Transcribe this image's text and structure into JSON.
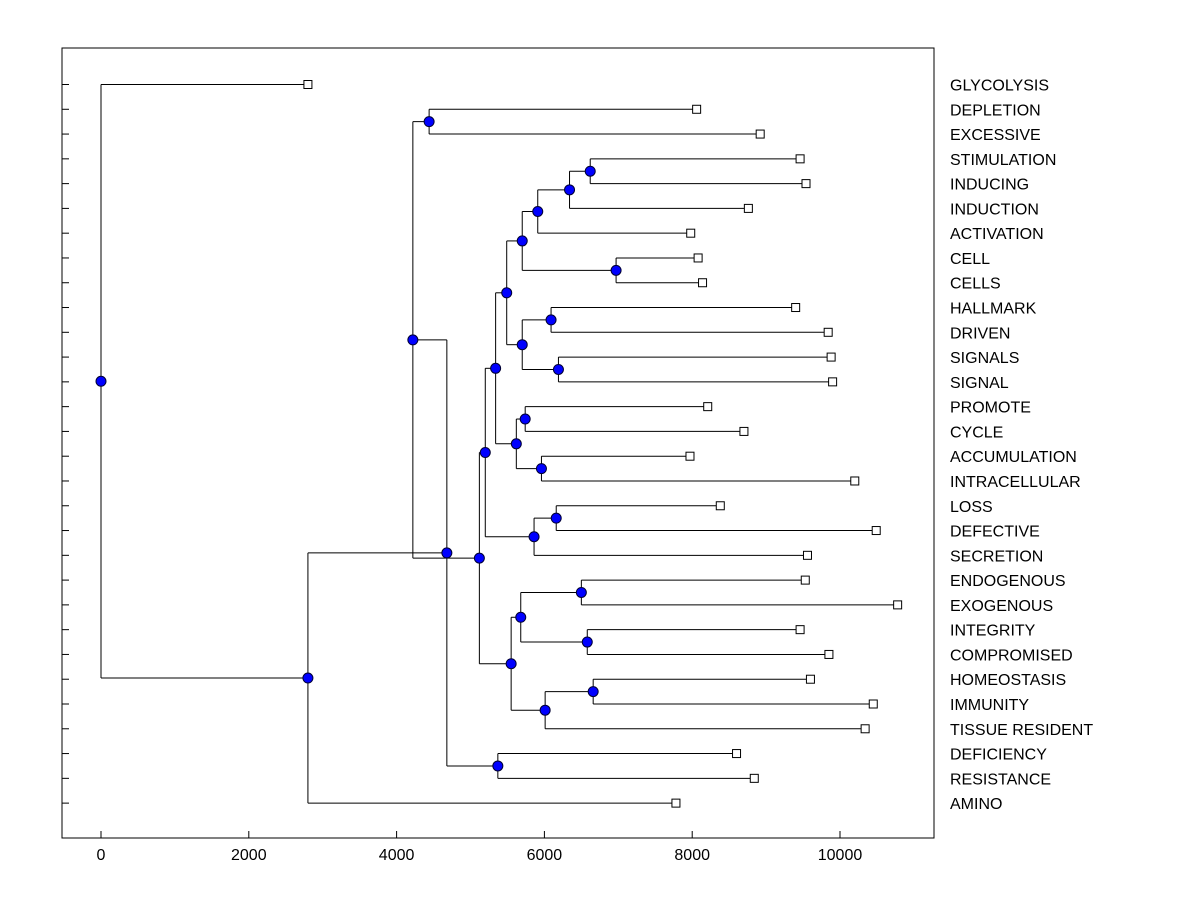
{
  "chart_data": {
    "type": "dendrogram",
    "title": "",
    "xlabel": "",
    "ylabel": "",
    "xlim": [
      -500,
      11400
    ],
    "x_ticks": [
      0,
      2000,
      4000,
      6000,
      8000,
      10000
    ],
    "grid": false,
    "leaves": [
      {
        "label": "GLYCOLYSIS",
        "x": 2800
      },
      {
        "label": "DEPLETION",
        "x": 8060
      },
      {
        "label": "EXCESSIVE",
        "x": 8920
      },
      {
        "label": "STIMULATION",
        "x": 9460
      },
      {
        "label": "INDUCING",
        "x": 9540
      },
      {
        "label": "INDUCTION",
        "x": 8760
      },
      {
        "label": "ACTIVATION",
        "x": 7980
      },
      {
        "label": "CELL",
        "x": 8080
      },
      {
        "label": "CELLS",
        "x": 8140
      },
      {
        "label": "HALLMARK",
        "x": 9400
      },
      {
        "label": "DRIVEN",
        "x": 9840
      },
      {
        "label": "SIGNALS",
        "x": 9880
      },
      {
        "label": "SIGNAL",
        "x": 9900
      },
      {
        "label": "PROMOTE",
        "x": 8210
      },
      {
        "label": "CYCLE",
        "x": 8700
      },
      {
        "label": "ACCUMULATION",
        "x": 7970
      },
      {
        "label": "INTRACELLULAR",
        "x": 10200
      },
      {
        "label": "LOSS",
        "x": 8380
      },
      {
        "label": "DEFECTIVE",
        "x": 10490
      },
      {
        "label": "SECRETION",
        "x": 9560
      },
      {
        "label": "ENDOGENOUS",
        "x": 9530
      },
      {
        "label": "EXOGENOUS",
        "x": 10780
      },
      {
        "label": "INTEGRITY",
        "x": 9460
      },
      {
        "label": "COMPROMISED",
        "x": 9850
      },
      {
        "label": "HOMEOSTASIS",
        "x": 9600
      },
      {
        "label": "IMMUNITY",
        "x": 10450
      },
      {
        "label": "TISSUE RESIDENT",
        "x": 10340
      },
      {
        "label": "DEFICIENCY",
        "x": 8600
      },
      {
        "label": "RESISTANCE",
        "x": 8840
      },
      {
        "label": "AMINO",
        "x": 7780
      }
    ],
    "merges": [
      {
        "id": "n1",
        "x": 4440,
        "children": [
          "L1",
          "L2"
        ]
      },
      {
        "id": "n2",
        "x": 6620,
        "children": [
          "L3",
          "L4"
        ]
      },
      {
        "id": "n3",
        "x": 6340,
        "children": [
          "n2",
          "L5"
        ]
      },
      {
        "id": "n4",
        "x": 5910,
        "children": [
          "n3",
          "L6"
        ]
      },
      {
        "id": "n5",
        "x": 6970,
        "children": [
          "L7",
          "L8"
        ]
      },
      {
        "id": "n6",
        "x": 5700,
        "children": [
          "n4",
          "n5"
        ]
      },
      {
        "id": "n7",
        "x": 6090,
        "children": [
          "L9",
          "L10"
        ]
      },
      {
        "id": "n8",
        "x": 6190,
        "children": [
          "L11",
          "L12"
        ]
      },
      {
        "id": "n9",
        "x": 5700,
        "children": [
          "n7",
          "n8"
        ]
      },
      {
        "id": "n10",
        "x": 5490,
        "children": [
          "n6",
          "n9"
        ]
      },
      {
        "id": "n11",
        "x": 5740,
        "children": [
          "L13",
          "L14"
        ]
      },
      {
        "id": "n12",
        "x": 5960,
        "children": [
          "L15",
          "L16"
        ]
      },
      {
        "id": "n13",
        "x": 5620,
        "children": [
          "n11",
          "n12"
        ]
      },
      {
        "id": "n14",
        "x": 5340,
        "children": [
          "n10",
          "n13"
        ]
      },
      {
        "id": "n15",
        "x": 6160,
        "children": [
          "L17",
          "L18"
        ]
      },
      {
        "id": "n16",
        "x": 5860,
        "children": [
          "n15",
          "L19"
        ]
      },
      {
        "id": "n17",
        "x": 5200,
        "children": [
          "n14",
          "n16"
        ]
      },
      {
        "id": "n18",
        "x": 6500,
        "children": [
          "L20",
          "L21"
        ]
      },
      {
        "id": "n19",
        "x": 6580,
        "children": [
          "L22",
          "L23"
        ]
      },
      {
        "id": "n20",
        "x": 5680,
        "children": [
          "n18",
          "n19"
        ]
      },
      {
        "id": "n21",
        "x": 6660,
        "children": [
          "L24",
          "L25"
        ]
      },
      {
        "id": "n22",
        "x": 6010,
        "children": [
          "n21",
          "L26"
        ]
      },
      {
        "id": "n23",
        "x": 5550,
        "children": [
          "n20",
          "n22"
        ]
      },
      {
        "id": "n24",
        "x": 5120,
        "children": [
          "n17",
          "n23"
        ]
      },
      {
        "id": "n25",
        "x": 4220,
        "children": [
          "n1",
          "n24"
        ]
      },
      {
        "id": "n26",
        "x": 5370,
        "children": [
          "L27",
          "L28"
        ]
      },
      {
        "id": "n27",
        "x": 4680,
        "children": [
          "n25",
          "n26"
        ]
      },
      {
        "id": "n28",
        "x": 2800,
        "children": [
          "n27",
          "L29"
        ]
      },
      {
        "id": "n29",
        "x": 0,
        "children": [
          "L0",
          "n28"
        ]
      }
    ],
    "colors": {
      "node": "#0000ff",
      "line": "#000000",
      "leaf_marker": "#ffffff"
    }
  }
}
